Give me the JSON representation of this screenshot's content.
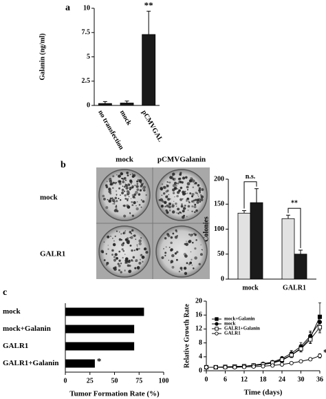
{
  "chart_data": [
    {
      "type": "bar",
      "panel": "a",
      "ylabel": "Galanin (ng/ml)",
      "categories": [
        "no transfection",
        "mock",
        "pCMVGAL"
      ],
      "values": [
        0.2,
        0.25,
        7.3
      ],
      "errors": [
        0.2,
        0.2,
        2.4
      ],
      "color": "#1a1a1a",
      "ylim": [
        0,
        10
      ],
      "yticks": [
        0,
        2.5,
        5,
        7.5,
        10
      ],
      "annotations": [
        "**"
      ]
    },
    {
      "type": "bar",
      "panel": "b",
      "ylabel": "Colonies",
      "image_columns": [
        "mock",
        "pCMVGalanin"
      ],
      "image_rows": [
        "mock",
        "GALR1"
      ],
      "categories": [
        "mock",
        "GALR1"
      ],
      "series": [
        {
          "color": "#e2e2e2",
          "values": [
            132,
            121
          ],
          "errors": [
            5,
            7
          ]
        },
        {
          "color": "#1a1a1a",
          "values": [
            153,
            50
          ],
          "errors": [
            28,
            8
          ]
        }
      ],
      "ylim": [
        0,
        200
      ],
      "yticks": [
        0,
        50,
        100,
        150,
        200
      ],
      "annotations": [
        "n.s.",
        "**"
      ]
    },
    {
      "type": "barh",
      "panel": "c",
      "xlabel": "Tumor Formation Rate (%)",
      "categories": [
        "mock",
        "mock+Galanin",
        "GALR1",
        "GALR1+Galanin"
      ],
      "values": [
        80,
        70,
        70,
        30
      ],
      "color": "#000000",
      "xlim": [
        0,
        100
      ],
      "xticks": [
        0,
        25,
        50,
        75,
        100
      ],
      "annotations": [
        "*"
      ]
    },
    {
      "type": "line",
      "xlabel": "Time (days)",
      "ylabel": "Relative Growth Rate",
      "x": [
        0,
        3,
        6,
        9,
        12,
        15,
        18,
        21,
        24,
        27,
        30,
        33,
        36
      ],
      "series": [
        {
          "name": "mock+Galanin",
          "marker": "square",
          "filled": true,
          "color": "#000000",
          "values": [
            1,
            1,
            1.1,
            1.2,
            1.3,
            1.5,
            1.8,
            2.2,
            3,
            4.5,
            6.5,
            9.5,
            15.5
          ],
          "errors": [
            0.1,
            0.1,
            0.1,
            0.1,
            0.2,
            0.2,
            0.3,
            0.3,
            0.5,
            0.7,
            1,
            1.5,
            4
          ]
        },
        {
          "name": "mock",
          "marker": "circle",
          "filled": true,
          "color": "#000000",
          "values": [
            1,
            1,
            1.1,
            1.2,
            1.3,
            1.6,
            2,
            2.5,
            3.5,
            5,
            7,
            10,
            14
          ],
          "errors": [
            0.1,
            0.1,
            0.1,
            0.1,
            0.2,
            0.2,
            0.3,
            0.4,
            0.6,
            0.8,
            1.1,
            1.4,
            1.8
          ]
        },
        {
          "name": "GALR1+Galanin",
          "marker": "square",
          "filled": false,
          "color": "#000000",
          "values": [
            1,
            1,
            1.1,
            1.2,
            1.3,
            1.5,
            1.8,
            2.3,
            3.2,
            4.5,
            6.3,
            9,
            12.5
          ],
          "errors": [
            0.1,
            0.1,
            0.1,
            0.1,
            0.2,
            0.2,
            0.3,
            0.3,
            0.5,
            0.7,
            0.9,
            1.2,
            1.6
          ]
        },
        {
          "name": "GALR1",
          "marker": "circle",
          "filled": false,
          "color": "#000000",
          "values": [
            1,
            1,
            1,
            1,
            1.1,
            1.2,
            1.3,
            1.5,
            1.8,
            2.2,
            2.7,
            3.3,
            4.3
          ],
          "errors": [
            0.1,
            0.1,
            0.1,
            0.1,
            0.1,
            0.1,
            0.2,
            0.2,
            0.2,
            0.3,
            0.3,
            0.4,
            0.6
          ]
        }
      ],
      "xlim": [
        0,
        36
      ],
      "xticks": [
        0,
        6,
        12,
        18,
        24,
        30,
        36
      ],
      "ylim": [
        0,
        20
      ],
      "yticks": [
        0,
        4,
        8,
        12,
        16,
        20
      ],
      "annotations": [
        "*"
      ]
    }
  ]
}
